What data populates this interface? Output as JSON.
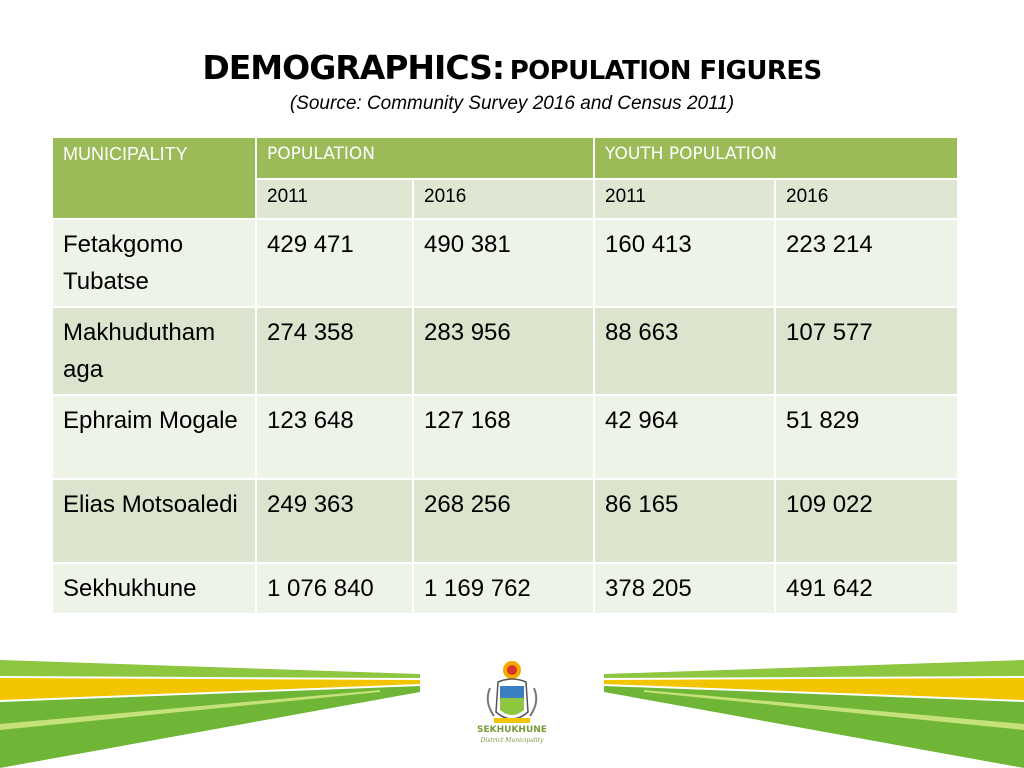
{
  "title": {
    "main": "DEMOGRAPHICS:",
    "sub": "POPULATION FIGURES"
  },
  "subtitle": "(Source: Community Survey 2016 and Census 2011)",
  "table": {
    "headers": {
      "municipality": "MUNICIPALITY",
      "population": "POPULATION",
      "youth_population": "YOUTH POPULATION"
    },
    "years": [
      "2011",
      "2016",
      "2011",
      "2016"
    ],
    "rows": [
      {
        "name": "Fetakgomo Tubatse",
        "values": [
          "429 471",
          "490 381",
          "160 413",
          "223 214"
        ]
      },
      {
        "name": "Makhudutham aga",
        "values": [
          "274 358",
          "283 956",
          "88 663",
          "107 577"
        ]
      },
      {
        "name": "Ephraim Mogale",
        "values": [
          "123 648",
          "127 168",
          "42 964",
          "51 829"
        ]
      },
      {
        "name": "Elias Motsoaledi",
        "values": [
          "249 363",
          "268 256",
          "86 165",
          "109 022"
        ]
      },
      {
        "name": "Sekhukhune",
        "values": [
          "1 076 840",
          "1 169 762",
          "378 205",
          "491 642"
        ]
      }
    ]
  },
  "footer": {
    "logo_name": "SEKHUKHUNE",
    "logo_tagline": "District Municipality",
    "logo_icon": "municipal-crest-icon",
    "colors": {
      "green": "#8dc63f",
      "yellow": "#f2c500",
      "header_green": "#9bbb59"
    }
  }
}
